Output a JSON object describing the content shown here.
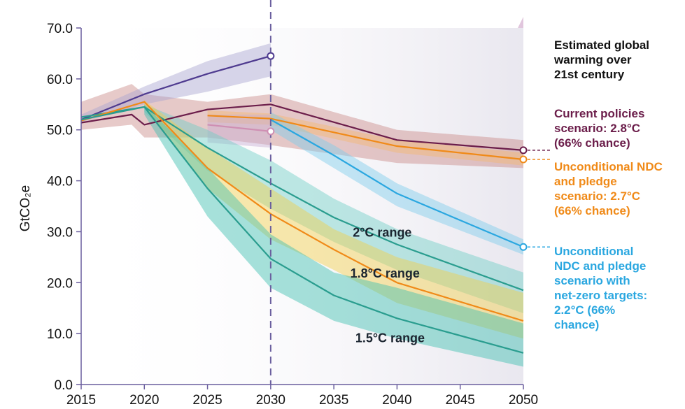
{
  "chart_data": {
    "type": "line",
    "ylabel": "GtCO₂e",
    "xlim": [
      2015,
      2050
    ],
    "ylim": [
      0,
      70
    ],
    "x_ticks": [
      2015,
      2020,
      2025,
      2030,
      2035,
      2040,
      2045,
      2050
    ],
    "y_ticks": [
      "0.0",
      "10.0",
      "20.0",
      "30.0",
      "40.0",
      "50.0",
      "60.0",
      "70.0"
    ],
    "reference_line_x": 2030,
    "grid": false,
    "legend_title": "Estimated global warming over 21st century",
    "series": [
      {
        "name": "Current policies scenario: 2.8°C (66% chance)",
        "color": "#6b1d4a",
        "band_color": "#c98a88",
        "points": [
          [
            2015,
            51.4
          ],
          [
            2019,
            53.0
          ],
          [
            2020,
            51.0
          ],
          [
            2025,
            54.0
          ],
          [
            2030,
            55.0
          ],
          [
            2040,
            48.0
          ],
          [
            2050,
            46.0
          ]
        ],
        "band_upper": [
          [
            2015,
            55.5
          ],
          [
            2019,
            59.0
          ],
          [
            2020,
            57.0
          ],
          [
            2025,
            55.5
          ],
          [
            2030,
            57.0
          ],
          [
            2040,
            50.0
          ],
          [
            2050,
            48.0
          ]
        ],
        "band_lower": [
          [
            2015,
            50.0
          ],
          [
            2019,
            51.0
          ],
          [
            2020,
            48.5
          ],
          [
            2025,
            48.5
          ],
          [
            2030,
            47.0
          ],
          [
            2040,
            43.5
          ],
          [
            2050,
            42.5
          ]
        ],
        "end_marker": true
      },
      {
        "name": "Unconditional NDC and pledge scenario: 2.7°C (66% chance)",
        "color": "#f08a18",
        "band_color": "#f3b870",
        "points": [
          [
            2025,
            52.8
          ],
          [
            2030,
            52.2
          ],
          [
            2040,
            46.8
          ],
          [
            2050,
            44.2
          ]
        ],
        "band_upper": [
          [
            2025,
            53.8
          ],
          [
            2030,
            53.2
          ],
          [
            2040,
            48.0
          ],
          [
            2050,
            45.5
          ]
        ],
        "band_lower": [
          [
            2025,
            51.5
          ],
          [
            2030,
            51.0
          ],
          [
            2040,
            45.5
          ],
          [
            2050,
            43.0
          ]
        ],
        "end_marker": true
      },
      {
        "name": "Unconditional NDC and pledge scenario with net-zero targets: 2.2°C (66% chance)",
        "color": "#2aa7e0",
        "band_color": "#7ccbec",
        "points": [
          [
            2030,
            52.0
          ],
          [
            2035,
            45.0
          ],
          [
            2040,
            37.5
          ],
          [
            2050,
            27.0
          ]
        ],
        "band_upper": [
          [
            2030,
            53.5
          ],
          [
            2035,
            47.0
          ],
          [
            2040,
            39.5
          ],
          [
            2050,
            28.5
          ]
        ],
        "band_lower": [
          [
            2030,
            50.0
          ],
          [
            2035,
            42.5
          ],
          [
            2040,
            35.0
          ],
          [
            2050,
            25.5
          ]
        ],
        "end_marker": true
      },
      {
        "color": "#4e3a8f",
        "band_color": "#a9a5d0",
        "points": [
          [
            2015,
            52.0
          ],
          [
            2020,
            57.0
          ],
          [
            2025,
            61.0
          ],
          [
            2030,
            64.5
          ]
        ],
        "band_upper": [
          [
            2015,
            53.0
          ],
          [
            2020,
            58.5
          ],
          [
            2025,
            63.5
          ],
          [
            2030,
            67.0
          ]
        ],
        "band_lower": [
          [
            2015,
            51.5
          ],
          [
            2020,
            55.0
          ],
          [
            2025,
            57.5
          ],
          [
            2030,
            60.5
          ]
        ],
        "end_marker": true
      },
      {
        "color": "#cf8fb3",
        "band_color": "#c8aed3",
        "points": [
          [
            2025,
            51.0
          ],
          [
            2030,
            49.7
          ]
        ],
        "band_upper": [
          [
            2025,
            53.0
          ],
          [
            2030,
            53.0
          ]
        ],
        "band_lower": [
          [
            2025,
            47.5
          ],
          [
            2030,
            46.5
          ]
        ],
        "end_marker": true
      },
      {
        "name": "2°C range",
        "color": "#2a9d8f",
        "band_color": "#6fcfc6",
        "points": [
          [
            2015,
            52.5
          ],
          [
            2020,
            54.5
          ],
          [
            2025,
            46.5
          ],
          [
            2030,
            39.5
          ],
          [
            2035,
            32.8
          ],
          [
            2040,
            27.5
          ],
          [
            2050,
            18.5
          ]
        ],
        "band_upper": [
          [
            2020,
            55.0
          ],
          [
            2025,
            50.0
          ],
          [
            2030,
            44.0
          ],
          [
            2035,
            36.5
          ],
          [
            2040,
            30.5
          ],
          [
            2050,
            22.0
          ]
        ],
        "band_lower": [
          [
            2020,
            53.5
          ],
          [
            2025,
            42.0
          ],
          [
            2030,
            34.5
          ],
          [
            2035,
            28.0
          ],
          [
            2040,
            22.5
          ],
          [
            2050,
            14.0
          ]
        ],
        "end_marker": false
      },
      {
        "name": "1.8°C range",
        "color": "#f08a18",
        "band_color": "#f2cf4a",
        "points": [
          [
            2015,
            51.8
          ],
          [
            2020,
            55.5
          ],
          [
            2025,
            42.5
          ],
          [
            2030,
            33.5
          ],
          [
            2035,
            26.5
          ],
          [
            2040,
            20.0
          ],
          [
            2050,
            12.5
          ]
        ],
        "band_upper": [
          [
            2020,
            55.8
          ],
          [
            2025,
            46.5
          ],
          [
            2030,
            38.5
          ],
          [
            2035,
            30.5
          ],
          [
            2040,
            25.0
          ],
          [
            2050,
            18.0
          ]
        ],
        "band_lower": [
          [
            2020,
            54.5
          ],
          [
            2025,
            38.5
          ],
          [
            2030,
            28.5
          ],
          [
            2035,
            22.5
          ],
          [
            2040,
            16.0
          ],
          [
            2050,
            9.0
          ]
        ],
        "end_marker": false
      },
      {
        "name": "1.5°C range",
        "color": "#2a9d8f",
        "band_color": "#3cbfb0",
        "points": [
          [
            2015,
            52.0
          ],
          [
            2020,
            54.5
          ],
          [
            2025,
            38.5
          ],
          [
            2030,
            24.7
          ],
          [
            2035,
            17.5
          ],
          [
            2040,
            13.0
          ],
          [
            2050,
            6.2
          ]
        ],
        "band_upper": [
          [
            2020,
            55.0
          ],
          [
            2025,
            42.5
          ],
          [
            2030,
            29.5
          ],
          [
            2035,
            22.0
          ],
          [
            2040,
            19.0
          ],
          [
            2050,
            12.0
          ]
        ],
        "band_lower": [
          [
            2020,
            53.0
          ],
          [
            2025,
            33.0
          ],
          [
            2030,
            19.0
          ],
          [
            2035,
            12.5
          ],
          [
            2040,
            9.0
          ],
          [
            2050,
            3.5
          ]
        ],
        "end_marker": false
      }
    ],
    "annotations": [
      {
        "text": "2°C range",
        "x": 2036.5,
        "y": 29.0
      },
      {
        "text": "1.8°C range",
        "x": 2036.3,
        "y": 21.0
      },
      {
        "text": "1.5°C range",
        "x": 2036.7,
        "y": 8.3
      }
    ]
  }
}
